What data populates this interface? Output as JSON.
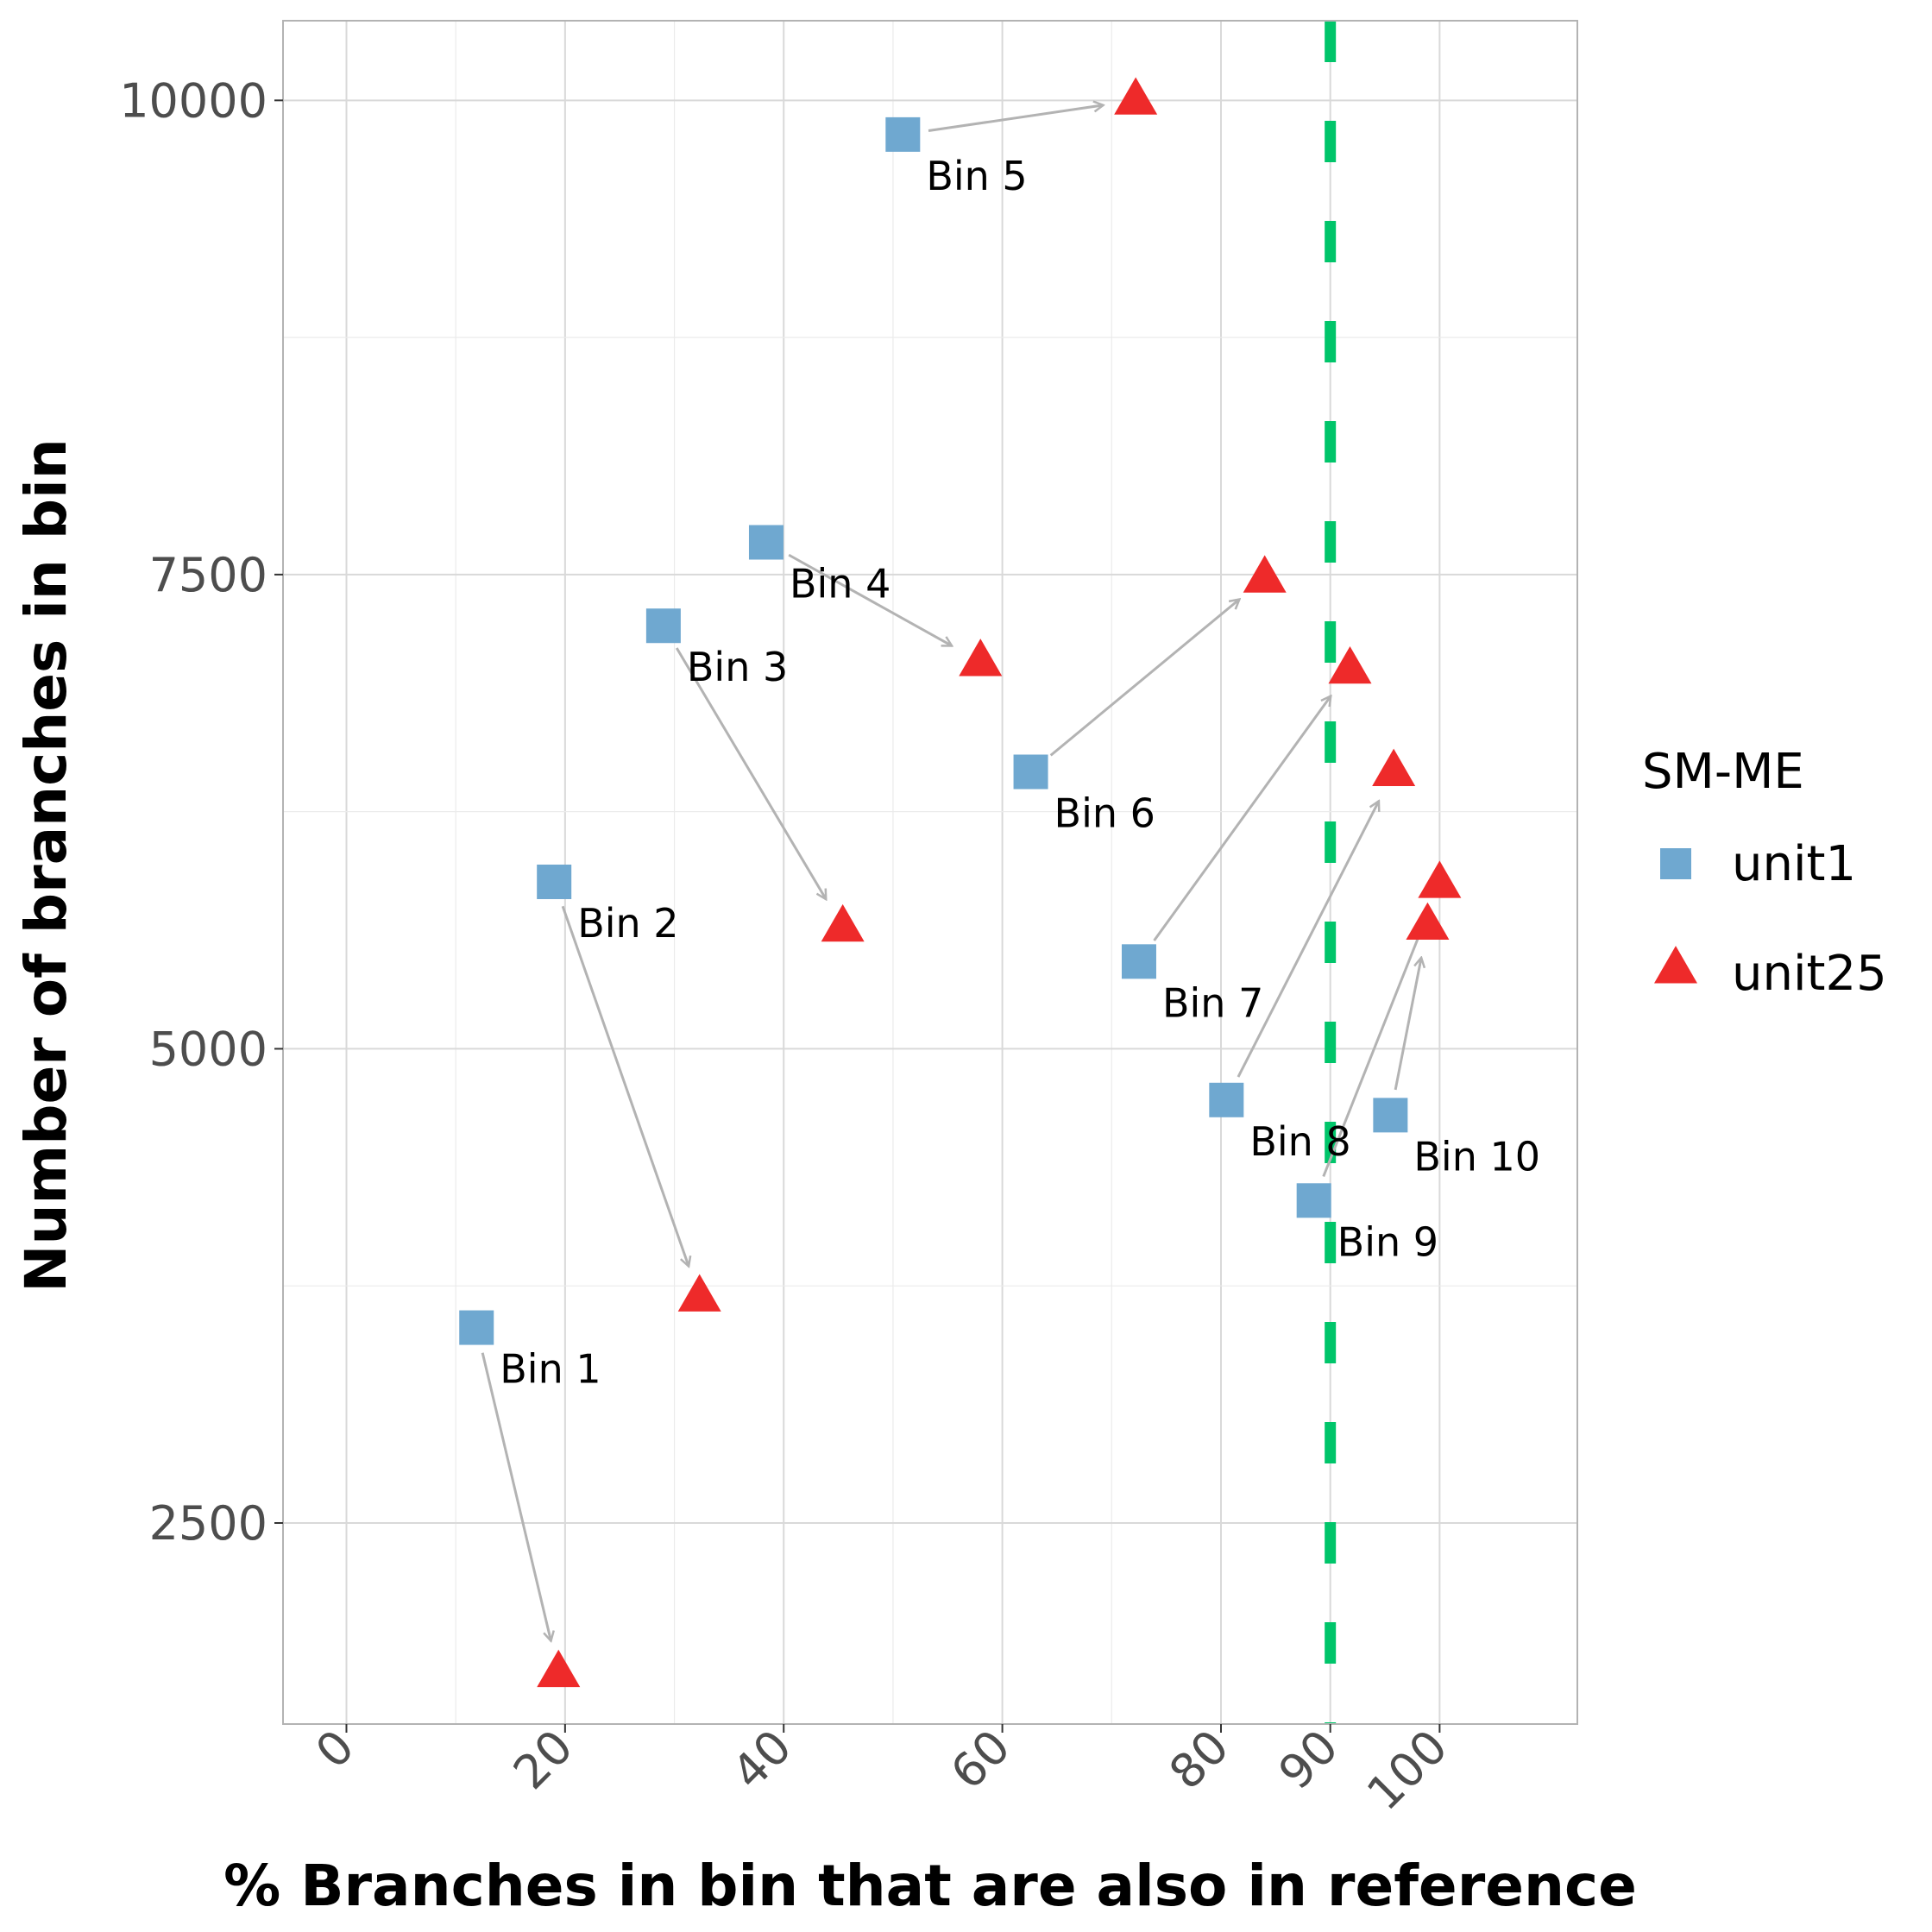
{
  "chart_data": {
    "type": "scatter",
    "title": "",
    "xlabel": "% Branches in bin that are also in reference",
    "ylabel": "Number of branches in bin",
    "xlim": [
      -5.8,
      112.6
    ],
    "ylim": [
      1440,
      10420
    ],
    "x_ticks": [
      0,
      20,
      40,
      60,
      80,
      90,
      100
    ],
    "x_tick_labels": [
      "0",
      "20",
      "40",
      "60",
      "80",
      "90",
      "100"
    ],
    "y_ticks": [
      2500,
      5000,
      7500,
      10000
    ],
    "y_tick_labels": [
      "2500",
      "5000",
      "7500",
      "10000"
    ],
    "grid": true,
    "reference_line": {
      "x": 90,
      "color": "#00c56a",
      "style": "dashed"
    },
    "legend": {
      "title": "SM-ME",
      "position": "right",
      "entries": [
        {
          "name": "unit1",
          "color": "#6fa8d0",
          "shape": "square"
        },
        {
          "name": "unit25",
          "color": "#ee2a2a",
          "shape": "triangle"
        }
      ]
    },
    "series": [
      {
        "name": "unit1",
        "color": "#6fa8d0",
        "shape": "square",
        "points": [
          {
            "label": "Bin 1",
            "x": 11.9,
            "y": 3530
          },
          {
            "label": "Bin 2",
            "x": 19.0,
            "y": 5880
          },
          {
            "label": "Bin 3",
            "x": 29.0,
            "y": 7230
          },
          {
            "label": "Bin 4",
            "x": 38.4,
            "y": 7670
          },
          {
            "label": "Bin 5",
            "x": 50.9,
            "y": 9820
          },
          {
            "label": "Bin 6",
            "x": 62.6,
            "y": 6460
          },
          {
            "label": "Bin 7",
            "x": 72.5,
            "y": 5460
          },
          {
            "label": "Bin 8",
            "x": 80.5,
            "y": 4730
          },
          {
            "label": "Bin 9",
            "x": 88.5,
            "y": 4200
          },
          {
            "label": "Bin 10",
            "x": 95.5,
            "y": 4650
          }
        ]
      },
      {
        "name": "unit25",
        "color": "#ee2a2a",
        "shape": "triangle",
        "points": [
          {
            "label": "Bin 1",
            "x": 19.4,
            "y": 1710
          },
          {
            "label": "Bin 2",
            "x": 32.3,
            "y": 3690
          },
          {
            "label": "Bin 3",
            "x": 45.4,
            "y": 5640
          },
          {
            "label": "Bin 4",
            "x": 58.0,
            "y": 7040
          },
          {
            "label": "Bin 5",
            "x": 72.2,
            "y": 10000
          },
          {
            "label": "Bin 6",
            "x": 84.0,
            "y": 7480
          },
          {
            "label": "Bin 7",
            "x": 91.8,
            "y": 7000
          },
          {
            "label": "Bin 8",
            "x": 95.8,
            "y": 6460
          },
          {
            "label": "Bin 9",
            "x": 100.0,
            "y": 5870
          },
          {
            "label": "Bin 10",
            "x": 98.9,
            "y": 5650
          }
        ]
      }
    ]
  }
}
